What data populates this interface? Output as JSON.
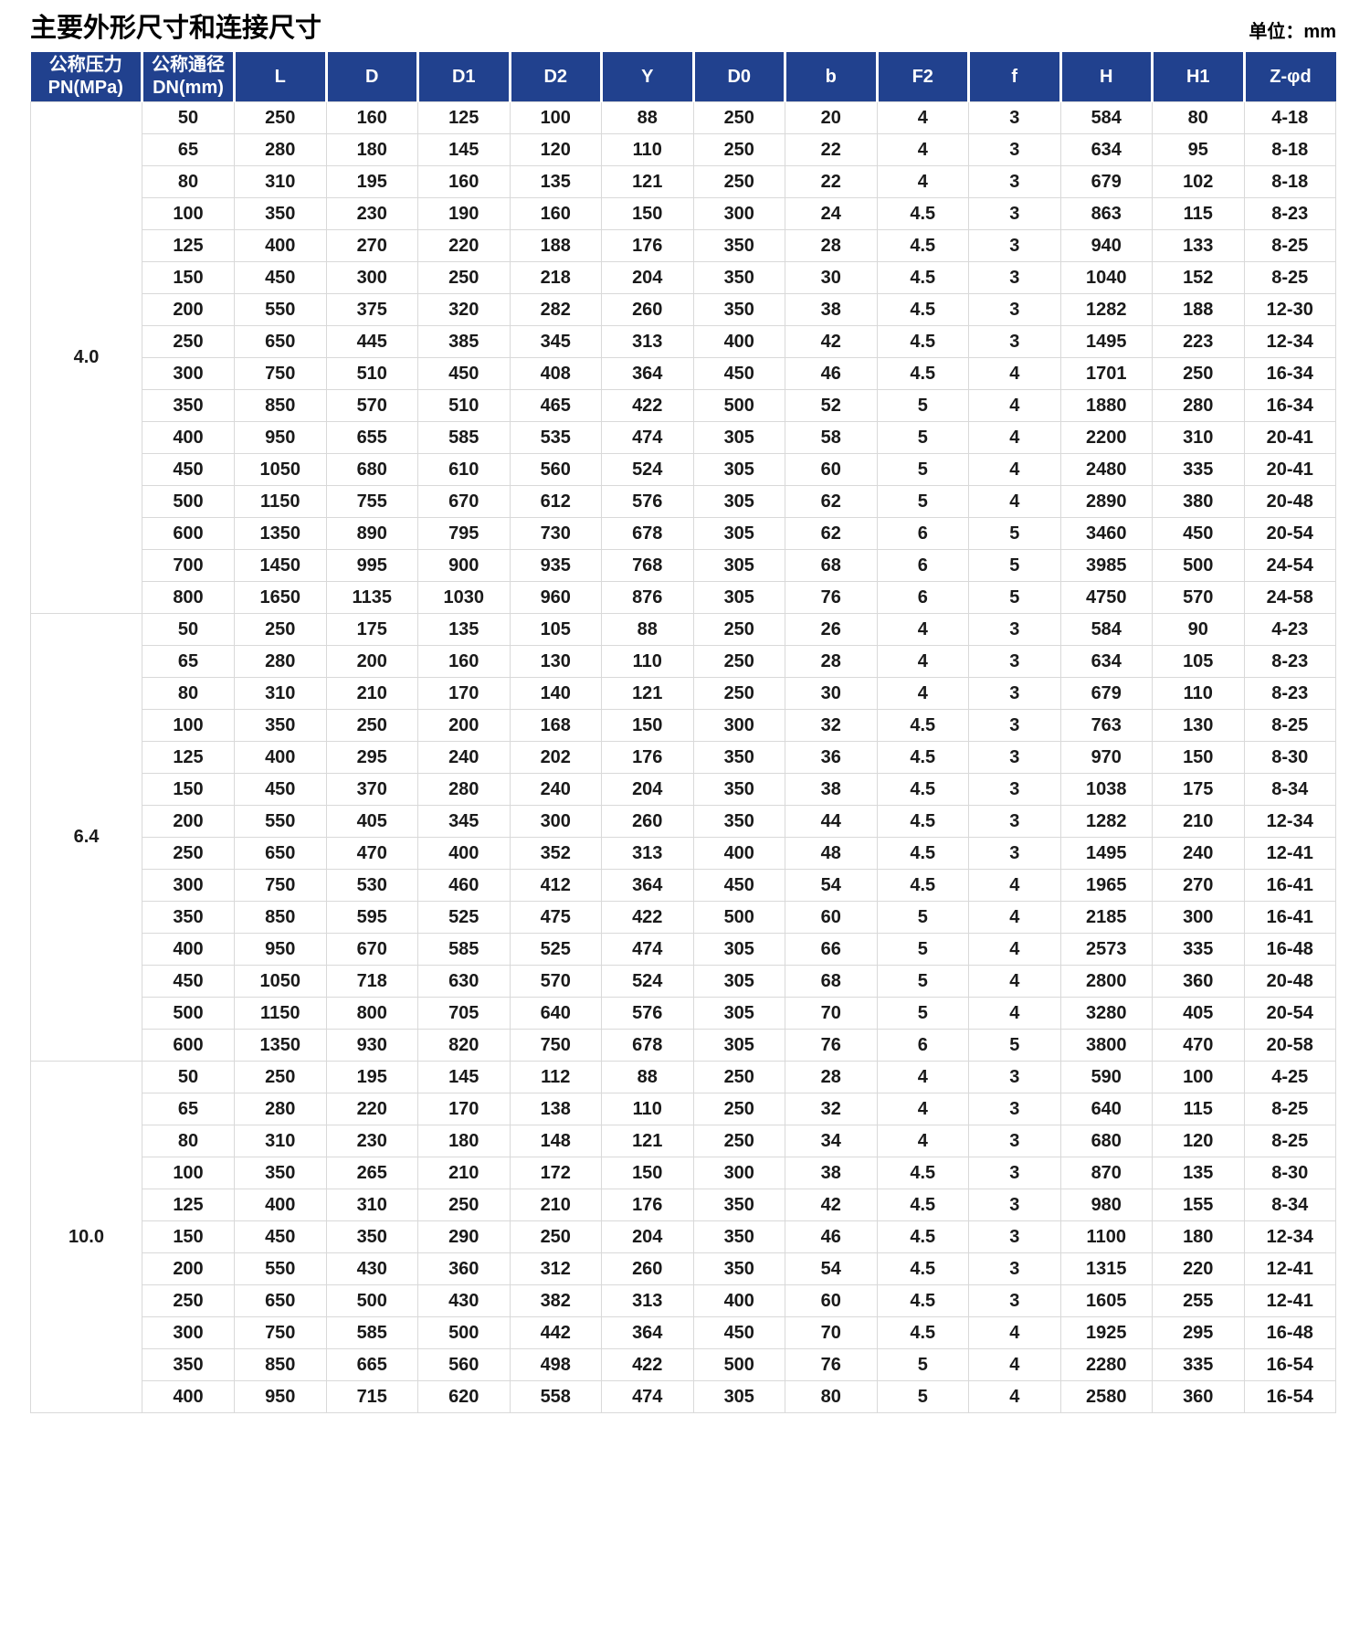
{
  "page": {
    "title": "主要外形尺寸和连接尺寸",
    "unit_label": "单位：mm"
  },
  "colors": {
    "header_bg": "#21418e",
    "header_text": "#ffffff",
    "body_text": "#1a1a1a",
    "grid_line": "#d9d9d9"
  },
  "table": {
    "column_headers": [
      "公称压力\nPN(MPa)",
      "公称通径\nDN(mm)",
      "L",
      "D",
      "D1",
      "D2",
      "Y",
      "D0",
      "b",
      "F2",
      "f",
      "H",
      "H1",
      "Z-φd"
    ],
    "groups": [
      {
        "pn": "4.0",
        "rows": [
          [
            "50",
            "250",
            "160",
            "125",
            "100",
            "88",
            "250",
            "20",
            "4",
            "3",
            "584",
            "80",
            "4-18"
          ],
          [
            "65",
            "280",
            "180",
            "145",
            "120",
            "110",
            "250",
            "22",
            "4",
            "3",
            "634",
            "95",
            "8-18"
          ],
          [
            "80",
            "310",
            "195",
            "160",
            "135",
            "121",
            "250",
            "22",
            "4",
            "3",
            "679",
            "102",
            "8-18"
          ],
          [
            "100",
            "350",
            "230",
            "190",
            "160",
            "150",
            "300",
            "24",
            "4.5",
            "3",
            "863",
            "115",
            "8-23"
          ],
          [
            "125",
            "400",
            "270",
            "220",
            "188",
            "176",
            "350",
            "28",
            "4.5",
            "3",
            "940",
            "133",
            "8-25"
          ],
          [
            "150",
            "450",
            "300",
            "250",
            "218",
            "204",
            "350",
            "30",
            "4.5",
            "3",
            "1040",
            "152",
            "8-25"
          ],
          [
            "200",
            "550",
            "375",
            "320",
            "282",
            "260",
            "350",
            "38",
            "4.5",
            "3",
            "1282",
            "188",
            "12-30"
          ],
          [
            "250",
            "650",
            "445",
            "385",
            "345",
            "313",
            "400",
            "42",
            "4.5",
            "3",
            "1495",
            "223",
            "12-34"
          ],
          [
            "300",
            "750",
            "510",
            "450",
            "408",
            "364",
            "450",
            "46",
            "4.5",
            "4",
            "1701",
            "250",
            "16-34"
          ],
          [
            "350",
            "850",
            "570",
            "510",
            "465",
            "422",
            "500",
            "52",
            "5",
            "4",
            "1880",
            "280",
            "16-34"
          ],
          [
            "400",
            "950",
            "655",
            "585",
            "535",
            "474",
            "305",
            "58",
            "5",
            "4",
            "2200",
            "310",
            "20-41"
          ],
          [
            "450",
            "1050",
            "680",
            "610",
            "560",
            "524",
            "305",
            "60",
            "5",
            "4",
            "2480",
            "335",
            "20-41"
          ],
          [
            "500",
            "1150",
            "755",
            "670",
            "612",
            "576",
            "305",
            "62",
            "5",
            "4",
            "2890",
            "380",
            "20-48"
          ],
          [
            "600",
            "1350",
            "890",
            "795",
            "730",
            "678",
            "305",
            "62",
            "6",
            "5",
            "3460",
            "450",
            "20-54"
          ],
          [
            "700",
            "1450",
            "995",
            "900",
            "935",
            "768",
            "305",
            "68",
            "6",
            "5",
            "3985",
            "500",
            "24-54"
          ],
          [
            "800",
            "1650",
            "1135",
            "1030",
            "960",
            "876",
            "305",
            "76",
            "6",
            "5",
            "4750",
            "570",
            "24-58"
          ]
        ]
      },
      {
        "pn": "6.4",
        "rows": [
          [
            "50",
            "250",
            "175",
            "135",
            "105",
            "88",
            "250",
            "26",
            "4",
            "3",
            "584",
            "90",
            "4-23"
          ],
          [
            "65",
            "280",
            "200",
            "160",
            "130",
            "110",
            "250",
            "28",
            "4",
            "3",
            "634",
            "105",
            "8-23"
          ],
          [
            "80",
            "310",
            "210",
            "170",
            "140",
            "121",
            "250",
            "30",
            "4",
            "3",
            "679",
            "110",
            "8-23"
          ],
          [
            "100",
            "350",
            "250",
            "200",
            "168",
            "150",
            "300",
            "32",
            "4.5",
            "3",
            "763",
            "130",
            "8-25"
          ],
          [
            "125",
            "400",
            "295",
            "240",
            "202",
            "176",
            "350",
            "36",
            "4.5",
            "3",
            "970",
            "150",
            "8-30"
          ],
          [
            "150",
            "450",
            "370",
            "280",
            "240",
            "204",
            "350",
            "38",
            "4.5",
            "3",
            "1038",
            "175",
            "8-34"
          ],
          [
            "200",
            "550",
            "405",
            "345",
            "300",
            "260",
            "350",
            "44",
            "4.5",
            "3",
            "1282",
            "210",
            "12-34"
          ],
          [
            "250",
            "650",
            "470",
            "400",
            "352",
            "313",
            "400",
            "48",
            "4.5",
            "3",
            "1495",
            "240",
            "12-41"
          ],
          [
            "300",
            "750",
            "530",
            "460",
            "412",
            "364",
            "450",
            "54",
            "4.5",
            "4",
            "1965",
            "270",
            "16-41"
          ],
          [
            "350",
            "850",
            "595",
            "525",
            "475",
            "422",
            "500",
            "60",
            "5",
            "4",
            "2185",
            "300",
            "16-41"
          ],
          [
            "400",
            "950",
            "670",
            "585",
            "525",
            "474",
            "305",
            "66",
            "5",
            "4",
            "2573",
            "335",
            "16-48"
          ],
          [
            "450",
            "1050",
            "718",
            "630",
            "570",
            "524",
            "305",
            "68",
            "5",
            "4",
            "2800",
            "360",
            "20-48"
          ],
          [
            "500",
            "1150",
            "800",
            "705",
            "640",
            "576",
            "305",
            "70",
            "5",
            "4",
            "3280",
            "405",
            "20-54"
          ],
          [
            "600",
            "1350",
            "930",
            "820",
            "750",
            "678",
            "305",
            "76",
            "6",
            "5",
            "3800",
            "470",
            "20-58"
          ]
        ]
      },
      {
        "pn": "10.0",
        "rows": [
          [
            "50",
            "250",
            "195",
            "145",
            "112",
            "88",
            "250",
            "28",
            "4",
            "3",
            "590",
            "100",
            "4-25"
          ],
          [
            "65",
            "280",
            "220",
            "170",
            "138",
            "110",
            "250",
            "32",
            "4",
            "3",
            "640",
            "115",
            "8-25"
          ],
          [
            "80",
            "310",
            "230",
            "180",
            "148",
            "121",
            "250",
            "34",
            "4",
            "3",
            "680",
            "120",
            "8-25"
          ],
          [
            "100",
            "350",
            "265",
            "210",
            "172",
            "150",
            "300",
            "38",
            "4.5",
            "3",
            "870",
            "135",
            "8-30"
          ],
          [
            "125",
            "400",
            "310",
            "250",
            "210",
            "176",
            "350",
            "42",
            "4.5",
            "3",
            "980",
            "155",
            "8-34"
          ],
          [
            "150",
            "450",
            "350",
            "290",
            "250",
            "204",
            "350",
            "46",
            "4.5",
            "3",
            "1100",
            "180",
            "12-34"
          ],
          [
            "200",
            "550",
            "430",
            "360",
            "312",
            "260",
            "350",
            "54",
            "4.5",
            "3",
            "1315",
            "220",
            "12-41"
          ],
          [
            "250",
            "650",
            "500",
            "430",
            "382",
            "313",
            "400",
            "60",
            "4.5",
            "3",
            "1605",
            "255",
            "12-41"
          ],
          [
            "300",
            "750",
            "585",
            "500",
            "442",
            "364",
            "450",
            "70",
            "4.5",
            "4",
            "1925",
            "295",
            "16-48"
          ],
          [
            "350",
            "850",
            "665",
            "560",
            "498",
            "422",
            "500",
            "76",
            "5",
            "4",
            "2280",
            "335",
            "16-54"
          ],
          [
            "400",
            "950",
            "715",
            "620",
            "558",
            "474",
            "305",
            "80",
            "5",
            "4",
            "2580",
            "360",
            "16-54"
          ]
        ]
      }
    ]
  }
}
